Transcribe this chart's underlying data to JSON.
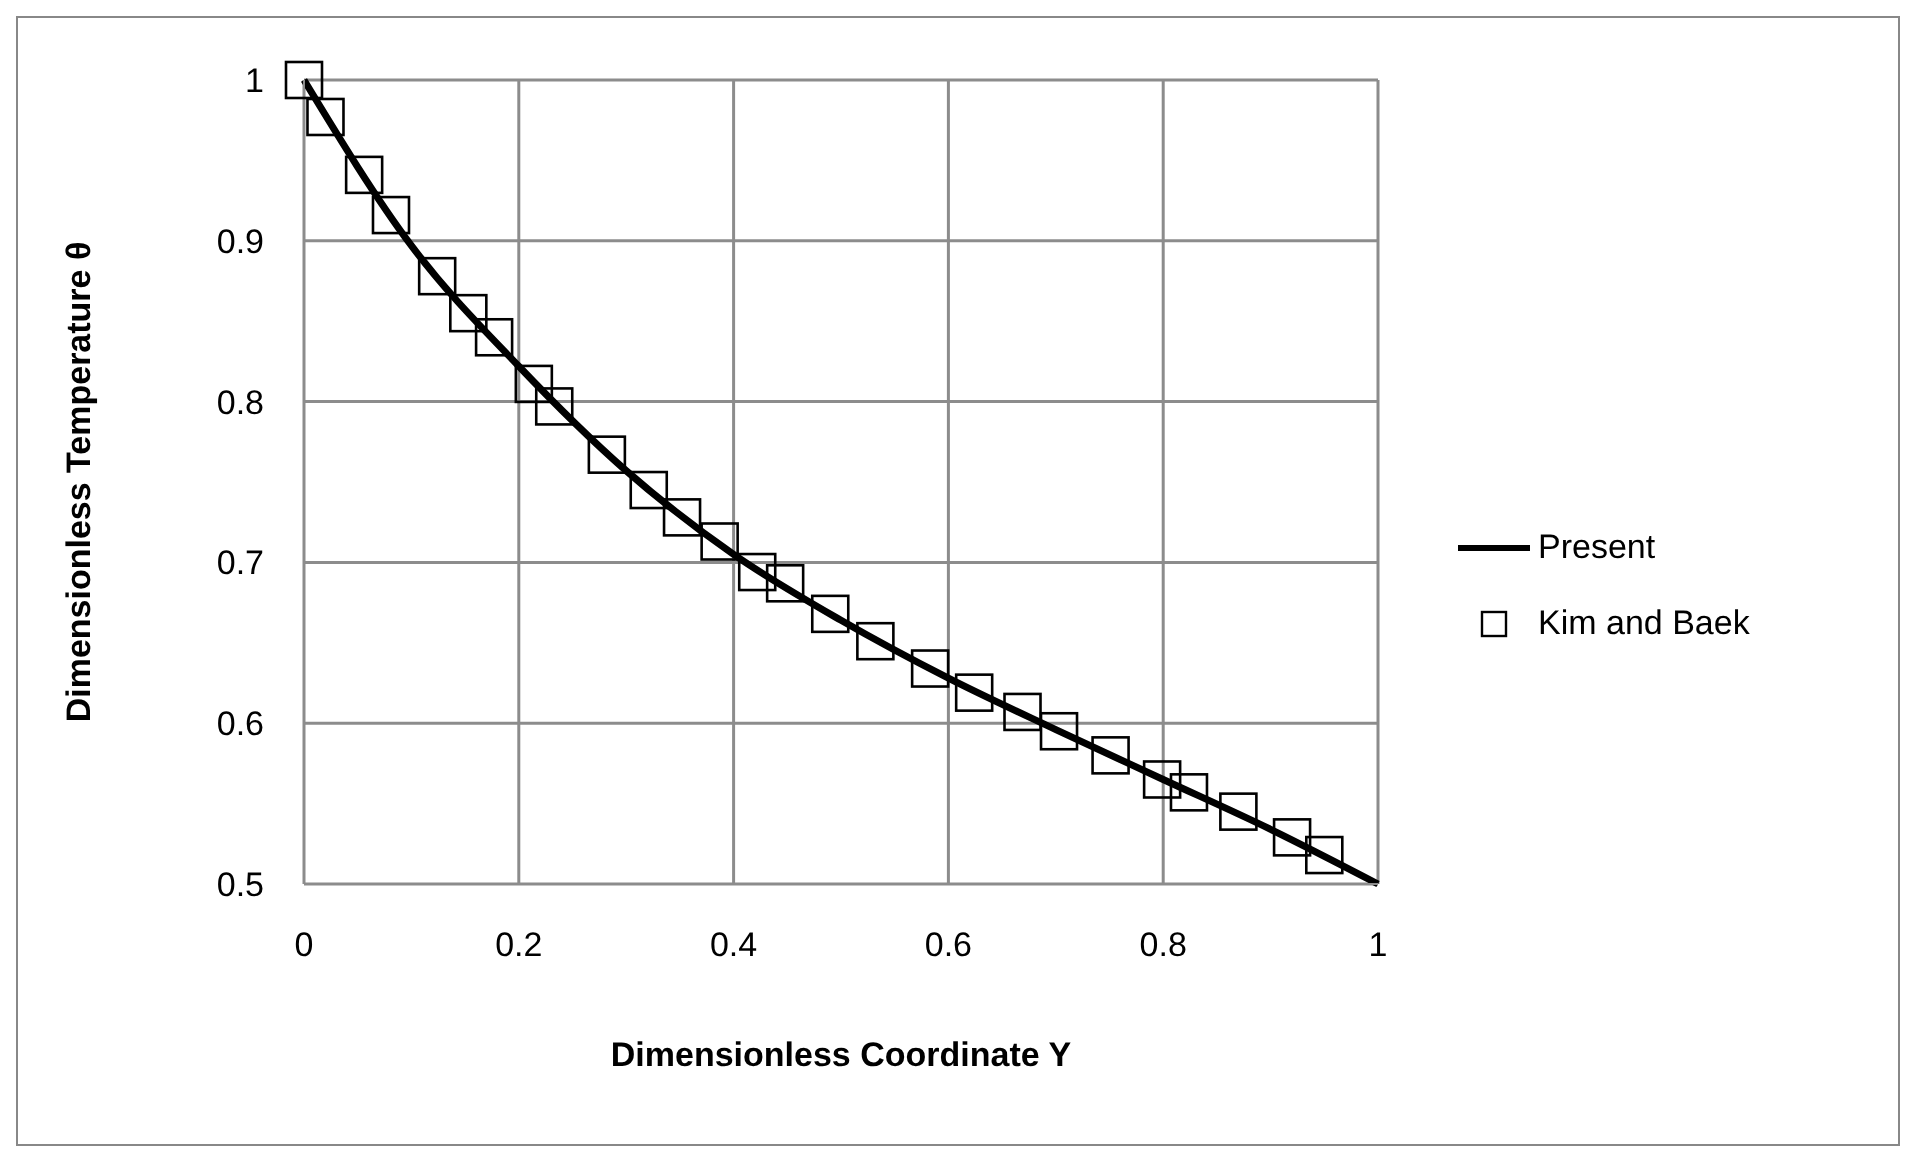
{
  "chart_data": {
    "type": "line",
    "xlabel": "Dimensionless Coordinate Y",
    "ylabel": "Dimensionless Temperature θ",
    "xlim": [
      0,
      1
    ],
    "ylim": [
      0.5,
      1
    ],
    "xticks": [
      0,
      0.2,
      0.4,
      0.6,
      0.8,
      1
    ],
    "yticks": [
      0.5,
      0.6,
      0.7,
      0.8,
      0.9,
      1
    ],
    "grid": true,
    "legend": "right",
    "series": [
      {
        "name": "Present",
        "type": "line",
        "color": "#000000",
        "marker": "none",
        "x": [
          0,
          0.1,
          0.2,
          0.3,
          0.4,
          0.5,
          0.6,
          0.7,
          0.8,
          0.9,
          1
        ],
        "values": [
          1,
          0.897,
          0.822,
          0.757,
          0.705,
          0.664,
          0.628,
          0.596,
          0.565,
          0.534,
          0.5
        ]
      },
      {
        "name": "Kim and Baek",
        "type": "scatter",
        "color": "#000000",
        "marker": "square",
        "x": [
          0,
          0.02,
          0.056,
          0.081,
          0.124,
          0.153,
          0.177,
          0.214,
          0.233,
          0.282,
          0.321,
          0.352,
          0.387,
          0.422,
          0.448,
          0.49,
          0.532,
          0.583,
          0.624,
          0.669,
          0.703,
          0.751,
          0.799,
          0.824,
          0.87,
          0.92,
          0.95
        ],
        "values": [
          1,
          0.977,
          0.941,
          0.916,
          0.878,
          0.855,
          0.84,
          0.811,
          0.797,
          0.767,
          0.745,
          0.728,
          0.713,
          0.694,
          0.687,
          0.668,
          0.651,
          0.634,
          0.619,
          0.607,
          0.595,
          0.58,
          0.565,
          0.557,
          0.545,
          0.529,
          0.518
        ]
      }
    ]
  }
}
